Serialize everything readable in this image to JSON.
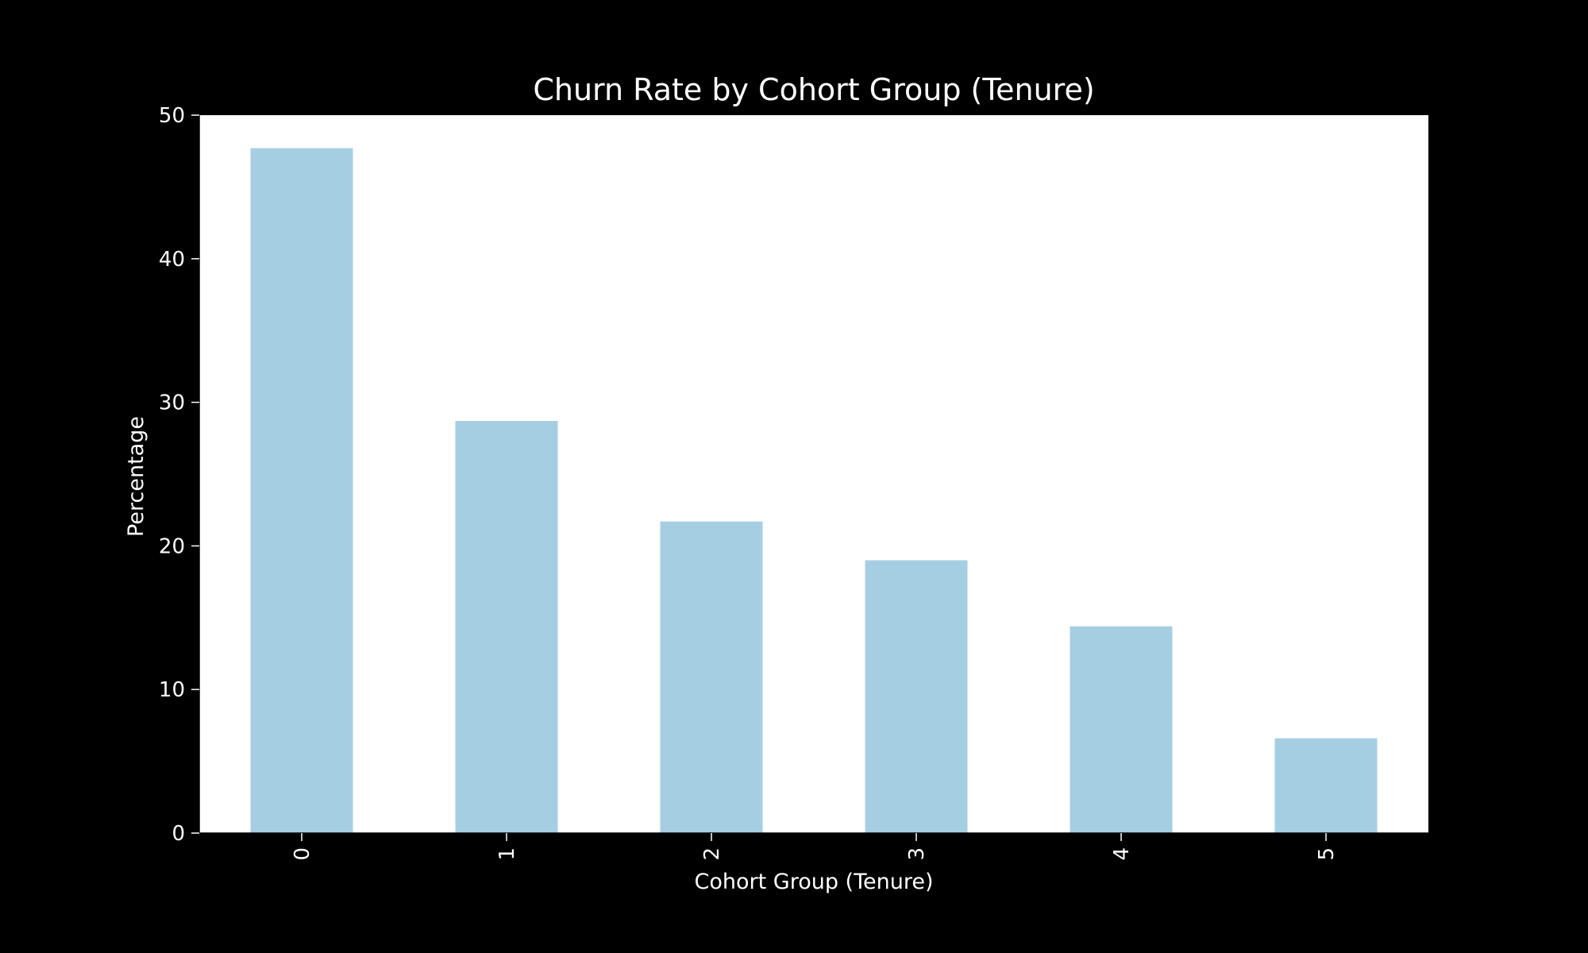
{
  "colors": {
    "figure_background": "#000000",
    "plot_background": "#ffffff",
    "bar": "#a6cee3",
    "text": "#ffffff",
    "axis": "#ffffff"
  },
  "chart_data": {
    "type": "bar",
    "title": "Churn Rate by Cohort Group (Tenure)",
    "xlabel": "Cohort Group (Tenure)",
    "ylabel": "Percentage",
    "categories": [
      "0",
      "1",
      "2",
      "3",
      "4",
      "5"
    ],
    "values": [
      47.7,
      28.7,
      21.7,
      19.0,
      14.4,
      6.6
    ],
    "ylim": [
      0,
      50
    ],
    "yticks": [
      0,
      10,
      20,
      30,
      40,
      50
    ],
    "x_tick_rotation": "vertical",
    "grid": false,
    "legend": "none"
  }
}
